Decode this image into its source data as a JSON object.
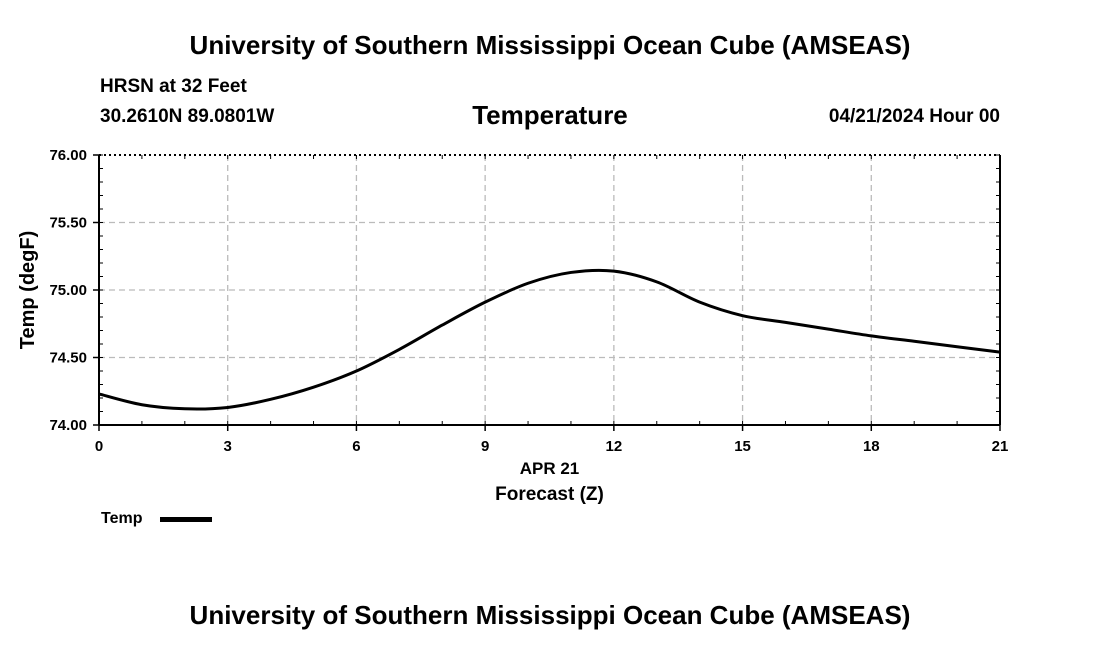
{
  "header": {
    "title": "University of Southern Mississippi Ocean Cube (AMSEAS)",
    "station": "HRSN at 32 Feet",
    "coords": "30.2610N  89.0801W",
    "datetime": "04/21/2024 Hour 00"
  },
  "footer": {
    "title": "University of Southern Mississippi Ocean Cube (AMSEAS)"
  },
  "legend": {
    "label": "Temp"
  },
  "chart_data": {
    "type": "line",
    "title": "Temperature",
    "xlabel": "Forecast (Z)",
    "xlabel_date": "APR 21",
    "ylabel": "Temp (degF)",
    "xlim": [
      0,
      21
    ],
    "ylim": [
      74.0,
      76.0
    ],
    "x_ticks": [
      0,
      3,
      6,
      9,
      12,
      15,
      18,
      21
    ],
    "y_ticks": [
      "74.00",
      "74.50",
      "75.00",
      "75.50",
      "76.00"
    ],
    "grid": true,
    "legend_position": "bottom-left",
    "series": [
      {
        "name": "Temp",
        "color": "#000000",
        "x": [
          0,
          1,
          2,
          3,
          4,
          5,
          6,
          7,
          8,
          9,
          10,
          11,
          12,
          13,
          14,
          15,
          16,
          17,
          18,
          19,
          20,
          21
        ],
        "y": [
          74.23,
          74.15,
          74.12,
          74.13,
          74.19,
          74.28,
          74.4,
          74.56,
          74.74,
          74.91,
          75.05,
          75.13,
          75.14,
          75.06,
          74.91,
          74.81,
          74.76,
          74.71,
          74.66,
          74.62,
          74.58,
          74.54
        ]
      }
    ]
  }
}
